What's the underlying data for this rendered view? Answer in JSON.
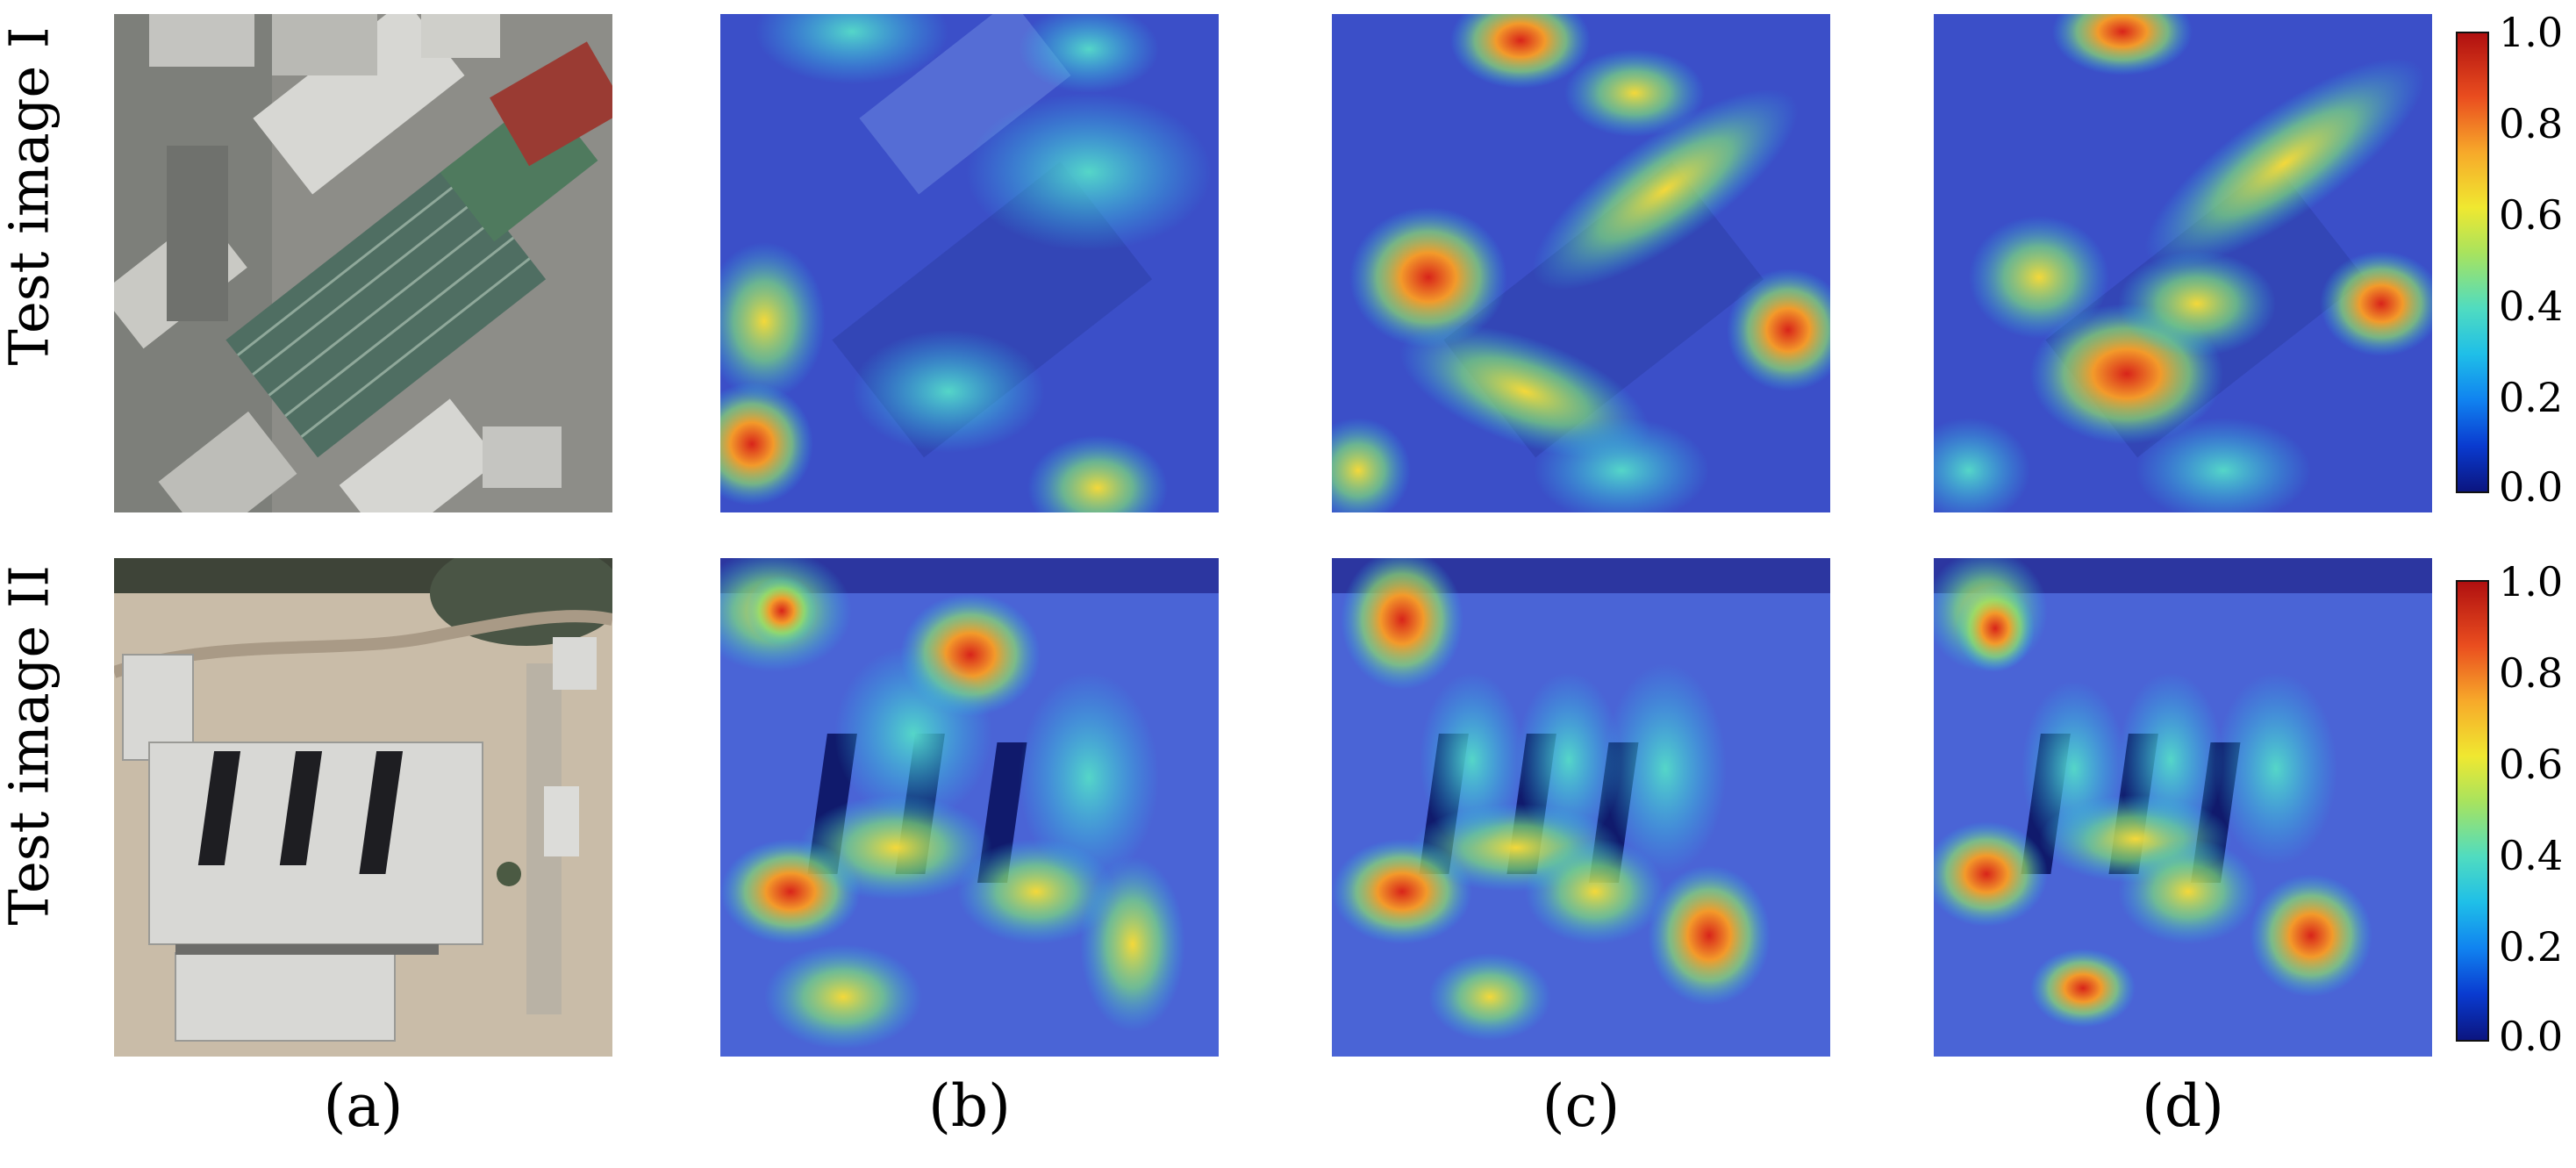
{
  "row_labels": [
    "Test image I",
    "Test image II"
  ],
  "column_labels": [
    "(a)",
    "(b)",
    "(c)",
    "(d)"
  ],
  "colorbar_ticks": [
    "1.0",
    "0.8",
    "0.6",
    "0.4",
    "0.2",
    "0.0"
  ],
  "colorbar_colors": [
    "#0b1580",
    "#1083f0",
    "#50dcc0",
    "#f0e830",
    "#ea4e1f",
    "#b01010"
  ]
}
